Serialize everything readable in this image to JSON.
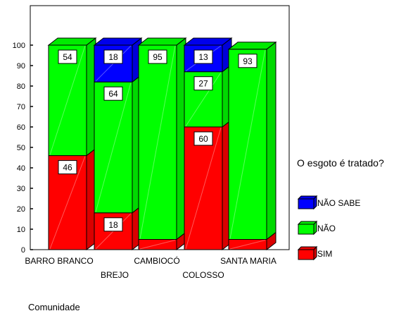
{
  "chart_data": {
    "type": "bar",
    "stacked": true,
    "style": "3d",
    "categories": [
      "BARRO BRANCO",
      "BREJO",
      "CAMBIOCÓ",
      "COLOSSO",
      "SANTA MARIA"
    ],
    "series": [
      {
        "name": "SIM",
        "color": "#ff0000",
        "values": [
          46,
          18,
          5,
          60,
          5
        ],
        "labels": [
          "46",
          "18",
          "",
          "60",
          ""
        ]
      },
      {
        "name": "NÃO",
        "color": "#00ff00",
        "values": [
          54,
          64,
          95,
          27,
          93
        ],
        "labels": [
          "54",
          "64",
          "95",
          "27",
          "93"
        ]
      },
      {
        "name": "NÃO SABE",
        "color": "#0000ff",
        "values": [
          0,
          18,
          0,
          13,
          0
        ],
        "labels": [
          "",
          "18",
          "",
          "13",
          ""
        ]
      }
    ],
    "yticks": [
      0,
      10,
      20,
      30,
      40,
      50,
      60,
      70,
      80,
      90,
      100
    ],
    "ylim": [
      0,
      100
    ],
    "xlabel": "Comunidade",
    "ylabel": "",
    "legend_title": "O esgoto é tratado?",
    "legend_position": "right",
    "grid": false
  }
}
